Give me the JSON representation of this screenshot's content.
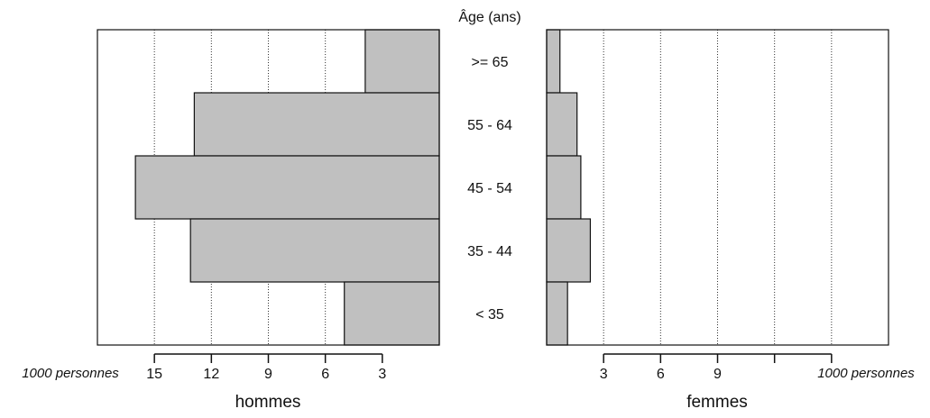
{
  "chart_data": {
    "type": "bar",
    "orientation": "horizontal",
    "layout": "population-pyramid",
    "y_axis_title": "Âge (ans)",
    "categories": [
      ">= 65",
      "55 - 64",
      "45 - 54",
      "35 - 44",
      "< 35"
    ],
    "unit_label": "1000 personnes",
    "grid": "dotted vertical",
    "bar_color": "#c0c0c0",
    "panels": [
      {
        "name": "hommes",
        "direction": "left",
        "xlim": [
          0,
          18
        ],
        "ticks": [
          15,
          12,
          9,
          6,
          3
        ],
        "tick_labels": [
          "15",
          "12",
          "9",
          "6",
          "3"
        ],
        "values": [
          3.9,
          12.9,
          16.0,
          13.1,
          5.0
        ]
      },
      {
        "name": "femmes",
        "direction": "right",
        "xlim": [
          0,
          18
        ],
        "ticks": [
          3,
          6,
          9,
          12,
          15
        ],
        "tick_labels": [
          "3",
          "6",
          "9",
          "",
          ""
        ],
        "values": [
          0.7,
          1.6,
          1.8,
          2.3,
          1.1
        ]
      }
    ]
  }
}
